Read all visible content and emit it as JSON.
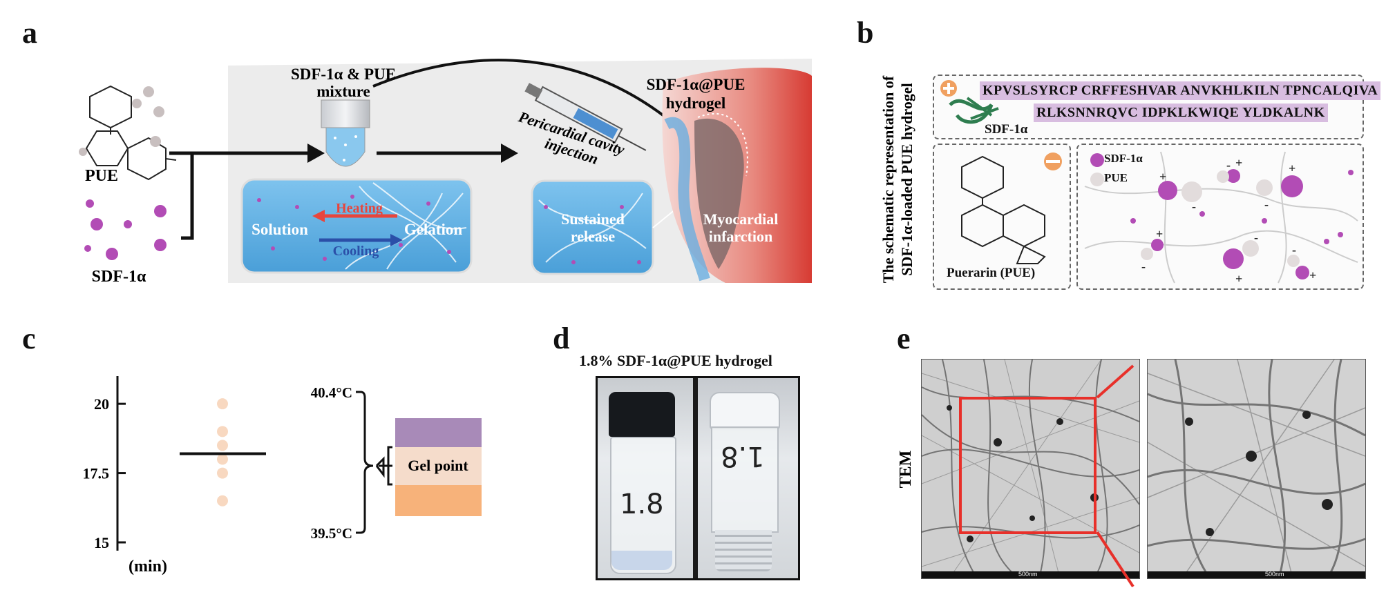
{
  "panels": {
    "a": {
      "letter": "a",
      "pue_label": "PUE",
      "sdf_label": "SDF-1α",
      "mixture_label_line1": "SDF-1α & PUE",
      "mixture_label_line2": "mixture",
      "injection_line1": "Pericardial cavity",
      "injection_line2": "injection",
      "hydrogel_line1": "SDF-1α@PUE",
      "hydrogel_line2": "hydrogel",
      "solution": "Solution",
      "gelation": "Gelation",
      "heating": "Heating",
      "cooling": "Cooling",
      "sustained_line1": "Sustained",
      "sustained_line2": "release",
      "mi_line1": "Myocardial",
      "mi_line2": "infarction"
    },
    "b": {
      "letter": "b",
      "vertical_line1": "The schematic representation of",
      "vertical_line2": "SDF-1α-loaded PUE hydrogel",
      "seq_line1": "KPVSLSYRCP CRFFESHVAR ANVKHLKILN TPNCALQIVA",
      "seq_line2": "RLKSNNRQVC IDPKLKWIQE YLDKALNK",
      "sdf_label": "SDF-1α",
      "pue_label": "Puerarin (PUE)",
      "legend_sdf": "SDF-1α",
      "legend_pue": "PUE"
    },
    "c": {
      "letter": "c",
      "yaxis_unit": "(min)",
      "ticks": [
        "20",
        "17.5",
        "15"
      ],
      "temp_high": "40.4°C",
      "temp_low": "39.5°C",
      "gel_point": "Gel point"
    },
    "d": {
      "letter": "d",
      "title": "1.8% SDF-1α@PUE hydrogel",
      "vial1_label": "1.8",
      "vial2_label": "1.8"
    },
    "e": {
      "letter": "e",
      "side_label": "TEM",
      "scale_left": "500nm",
      "scale_right": "500nm"
    }
  },
  "colors": {
    "sdf_purple": "#b24cb5",
    "pue_grey": "#c8bfbf",
    "arrow_red": "#e8453c",
    "arrow_blue": "#2b4fa8",
    "band_purple": "#a88ab8",
    "band_peach": "#f5dccb",
    "band_orange": "#f7b27a",
    "zoom_red": "#e8302a"
  },
  "chart_data": {
    "type": "scatter",
    "ylabel": "(min)",
    "ylim": [
      15,
      21
    ],
    "yticks": [
      15,
      17.5,
      20
    ],
    "points": [
      20.0,
      19.0,
      18.5,
      18.0,
      17.5,
      16.5
    ],
    "mean": 18.2,
    "temperature_range": [
      "39.5°C",
      "40.4°C"
    ],
    "annotation": "Gel point"
  }
}
